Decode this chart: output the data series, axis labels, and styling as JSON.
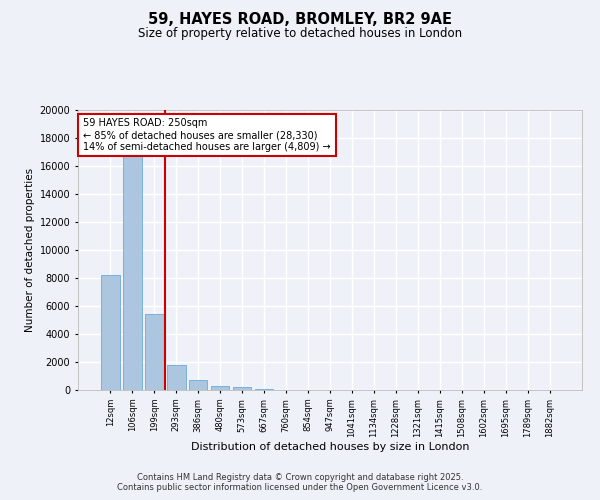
{
  "title": "59, HAYES ROAD, BROMLEY, BR2 9AE",
  "subtitle": "Size of property relative to detached houses in London",
  "xlabel": "Distribution of detached houses by size in London",
  "ylabel": "Number of detached properties",
  "categories": [
    "12sqm",
    "106sqm",
    "199sqm",
    "293sqm",
    "386sqm",
    "480sqm",
    "573sqm",
    "667sqm",
    "760sqm",
    "854sqm",
    "947sqm",
    "1041sqm",
    "1134sqm",
    "1228sqm",
    "1321sqm",
    "1415sqm",
    "1508sqm",
    "1602sqm",
    "1695sqm",
    "1789sqm",
    "1882sqm"
  ],
  "values": [
    8200,
    16700,
    5400,
    1800,
    750,
    300,
    180,
    100,
    30,
    5,
    2,
    1,
    0,
    0,
    0,
    0,
    0,
    0,
    0,
    0,
    0
  ],
  "bar_color": "#adc6e0",
  "bar_edge_color": "#5a9fd4",
  "vline_color": "#cc0000",
  "annotation_text": "59 HAYES ROAD: 250sqm\n← 85% of detached houses are smaller (28,330)\n14% of semi-detached houses are larger (4,809) →",
  "annotation_box_color": "#cc0000",
  "ylim": [
    0,
    20000
  ],
  "yticks": [
    0,
    2000,
    4000,
    6000,
    8000,
    10000,
    12000,
    14000,
    16000,
    18000,
    20000
  ],
  "background_color": "#eef2f8",
  "grid_color": "#ffffff",
  "footer_line1": "Contains HM Land Registry data © Crown copyright and database right 2025.",
  "footer_line2": "Contains public sector information licensed under the Open Government Licence v3.0."
}
